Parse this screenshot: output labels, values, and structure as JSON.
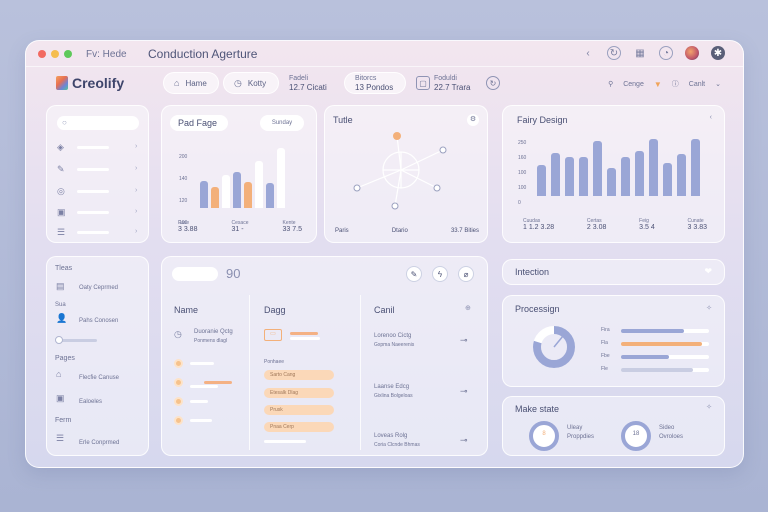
{
  "window": {
    "tab": "Fv: Hede",
    "title": "Conduction Agerture",
    "controls": [
      "back-icon",
      "refresh-icon",
      "grid-icon",
      "bell-icon",
      "avatar",
      "dark-mode-icon"
    ]
  },
  "brand": {
    "name": "Creolify"
  },
  "nav": {
    "home": "Hame",
    "kotty": "Kotty",
    "stat1_label": "Fadeli",
    "stat1_value": "12.7 Cicati",
    "stat2_label": "Bitorcs",
    "stat2_value": "13 Pondos",
    "stat3_label": "Foduldi",
    "stat3_value": "22.7 Trara",
    "right1": "Cenge",
    "right2": "Canlt"
  },
  "sidebar_top": {
    "items": [
      "",
      "",
      "",
      "",
      ""
    ]
  },
  "page_card": {
    "title": "Pad Fage",
    "button": "Sunday",
    "y_ticks": [
      "200",
      "140",
      "120",
      "100"
    ],
    "footer": [
      {
        "label": "Fase",
        "value": "3 3.88"
      },
      {
        "label": "Cesace",
        "value": "31 -"
      },
      {
        "label": "Kente",
        "value": "33 7.5"
      }
    ],
    "bars": [
      {
        "color": "blue",
        "value": 22
      },
      {
        "color": "orange",
        "value": 17
      },
      {
        "color": "white",
        "value": 27
      },
      {
        "color": "blue",
        "value": 29
      },
      {
        "color": "orange",
        "value": 21
      },
      {
        "color": "white",
        "value": 38
      },
      {
        "color": "blue",
        "value": 20
      },
      {
        "color": "white",
        "value": 48
      }
    ]
  },
  "tuile_card": {
    "title": "Tutle",
    "footer": [
      {
        "value": "Paris"
      },
      {
        "value": "Dtario"
      },
      {
        "value": "33.7 Bities"
      }
    ]
  },
  "fairy_card": {
    "title": "Fairy Design",
    "y_ticks": [
      "250",
      "160",
      "100",
      "100",
      "0"
    ],
    "footer": [
      {
        "label": "Cuudas",
        "value": "1 1.2 3.28"
      },
      {
        "label": "Certas",
        "value": "2 3.08"
      },
      {
        "label": "Feig",
        "value": "3.5 4"
      },
      {
        "label": "Cunate",
        "value": "3 3.83"
      }
    ],
    "bars": [
      31,
      43,
      39,
      39,
      55,
      28,
      39,
      45,
      57,
      33,
      42,
      57
    ]
  },
  "left_panel": {
    "section1": "Tleas",
    "item1": "Oaty Ceprmed",
    "section2": "Sua",
    "item2": "Pahs Conosen",
    "section3": "Pages",
    "item3": "Flecfie Canuse",
    "item4": "Ealoeles",
    "section4": "Ferm",
    "item5": "Erle Conprmed"
  },
  "main_panel": {
    "search_value": "",
    "title_number": "90",
    "col1": "Name",
    "col2": "Dagg",
    "col3": "Canil",
    "row1": "Duoranie Qctg",
    "row1b": "Ponmens dlagl",
    "mid_label": "Ponhaee",
    "chips": [
      "Sarto Cang",
      "Etesalk Dlag",
      "Prusk",
      "Pnaa Cerp"
    ],
    "right_rows": [
      {
        "title": "Lorenoo Cictg",
        "sub": "Gxpma Naeerenis"
      },
      {
        "title": "Laanse Edcg",
        "sub": "Gixlina Bolgeloas"
      },
      {
        "title": "Loveas Rolg",
        "sub": "Coria Clcnde Bhmas"
      }
    ],
    "actions": [
      "edit-icon",
      "bolt-icon",
      "link-icon"
    ]
  },
  "inter_card": {
    "title": "Intection"
  },
  "process_card": {
    "title": "Processign",
    "legend": [
      "Fira",
      "Fla",
      "Fbe",
      "Fle"
    ],
    "progress": [
      0.72,
      0.92,
      0.55,
      0.82
    ]
  },
  "make_card": {
    "title": "Make state",
    "donut1_value": "8",
    "donut1_label": "Uleay",
    "donut1_sub": "Proppdies",
    "donut2_value": "18",
    "donut2_label": "Sideo",
    "donut2_sub": "Ovroloes"
  },
  "colors": {
    "accent_blue": "#9aa6d6",
    "accent_orange": "#f3b07a",
    "dark_text": "#4a5074"
  }
}
